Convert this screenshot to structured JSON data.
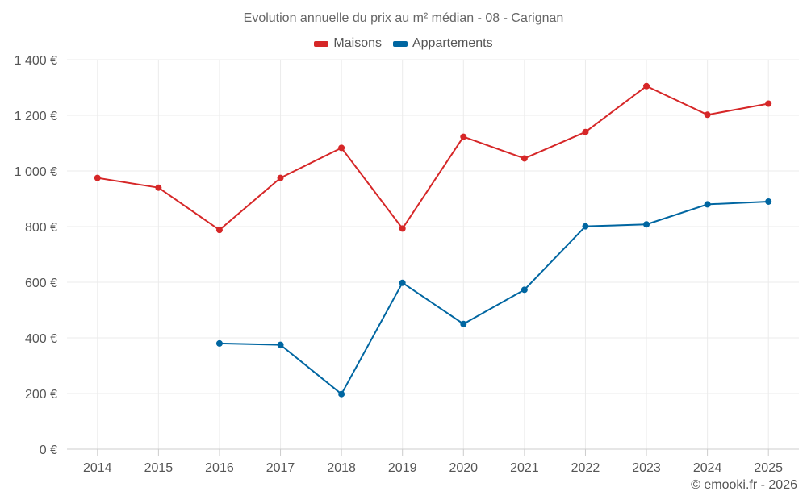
{
  "chart_data": {
    "type": "line",
    "title": "Evolution annuelle du prix au m² médian - 08 - Carignan",
    "categories": [
      "2014",
      "2015",
      "2016",
      "2017",
      "2018",
      "2019",
      "2020",
      "2021",
      "2022",
      "2023",
      "2024",
      "2025"
    ],
    "series": [
      {
        "name": "Maisons",
        "color": "#d62728",
        "values": [
          975,
          940,
          788,
          975,
          1083,
          793,
          1123,
          1045,
          1140,
          1305,
          1202,
          1242
        ]
      },
      {
        "name": "Appartements",
        "color": "#0066a1",
        "values": [
          null,
          null,
          380,
          375,
          198,
          598,
          450,
          573,
          801,
          808,
          880,
          890
        ]
      }
    ],
    "ylim": [
      0,
      1400
    ],
    "yticks": [
      0,
      200,
      400,
      600,
      800,
      1000,
      1200,
      1400
    ],
    "yticks_labels": [
      "0 €",
      "200 €",
      "400 €",
      "600 €",
      "800 €",
      "1 000 €",
      "1 200 €",
      "1 400 €"
    ],
    "grid": true,
    "legend_position": "top-center"
  },
  "credit": "© emooki.fr - 2026"
}
